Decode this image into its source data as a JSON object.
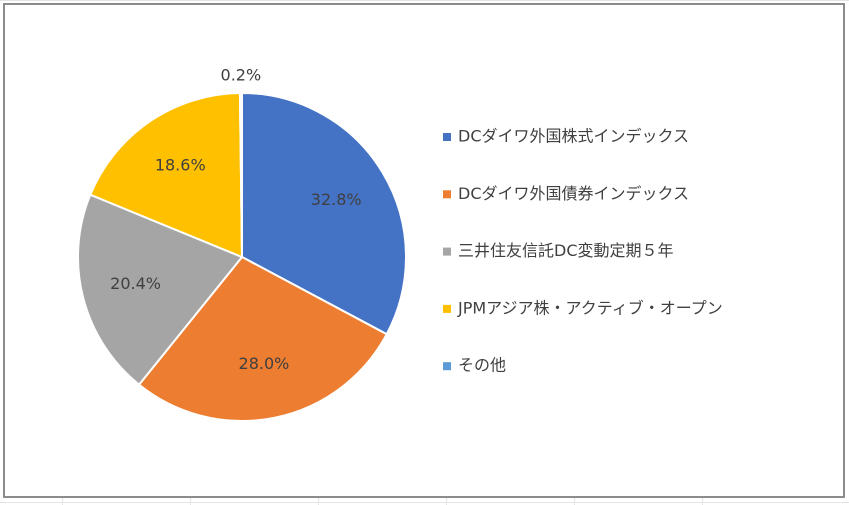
{
  "chart_data": {
    "type": "pie",
    "categories": [
      "DCダイワ外国株式インデックス",
      "DCダイワ外国債券インデックス",
      "三井住友信託DC変動定期５年",
      "JPMアジア株・アクティブ・オープン",
      "その他"
    ],
    "values": [
      32.8,
      28.0,
      20.4,
      18.6,
      0.2
    ],
    "value_labels": [
      "32.8%",
      "28.0%",
      "20.4%",
      "18.6%",
      "0.2%"
    ],
    "colors": [
      "#4472c4",
      "#ed7d31",
      "#a5a5a5",
      "#ffc000",
      "#5b9bd5"
    ],
    "legend": "right"
  }
}
